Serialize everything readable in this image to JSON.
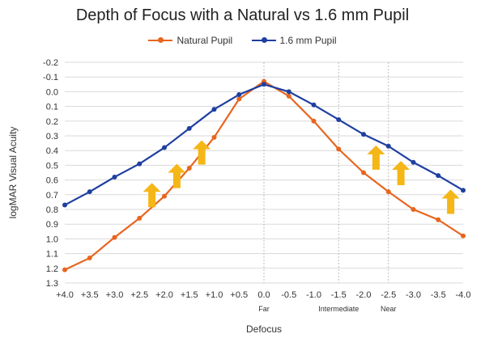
{
  "chart_data": {
    "type": "line",
    "title": "Depth of Focus with a Natural vs 1.6 mm Pupil",
    "xlabel": "Defocus",
    "ylabel": "logMAR Visual Acuity",
    "x": [
      "+4.0",
      "+3.5",
      "+3.0",
      "+2.5",
      "+2.0",
      "+1.5",
      "+1.0",
      "+0.5",
      "0.0",
      "-0.5",
      "-1.0",
      "-1.5",
      "-2.0",
      "-2.5",
      "-3.0",
      "-3.5",
      "-4.0"
    ],
    "x_annotations": [
      {
        "at": "0.0",
        "label": "Far"
      },
      {
        "at": "-1.5",
        "label": "Intermediate"
      },
      {
        "at": "-2.5",
        "label": "Near"
      }
    ],
    "y_ticks": [
      "-0.2",
      "-0.1",
      "0.0",
      "0.1",
      "0.2",
      "0.3",
      "0.4",
      "0.5",
      "0.6",
      "0.7",
      "0.8",
      "0.9",
      "1.0",
      "1.1",
      "1.2",
      "1.3"
    ],
    "ylim": [
      -0.2,
      1.3
    ],
    "y_inverted": true,
    "grid": "horizontal",
    "legend_position": "top",
    "series": [
      {
        "name": "Natural Pupil",
        "color": "#E8651E",
        "values": [
          1.21,
          1.13,
          0.99,
          0.86,
          0.71,
          0.52,
          0.31,
          0.05,
          -0.07,
          0.03,
          0.2,
          0.39,
          0.55,
          0.68,
          0.8,
          0.87,
          0.98
        ]
      },
      {
        "name": "1.6 mm Pupil",
        "color": "#1F3FA0",
        "values": [
          0.77,
          0.68,
          0.58,
          0.49,
          0.38,
          0.25,
          0.12,
          0.02,
          -0.05,
          0.0,
          0.09,
          0.19,
          0.29,
          0.37,
          0.48,
          0.57,
          0.67
        ]
      }
    ],
    "arrows": {
      "color": "#F5B617",
      "count": 6
    }
  }
}
